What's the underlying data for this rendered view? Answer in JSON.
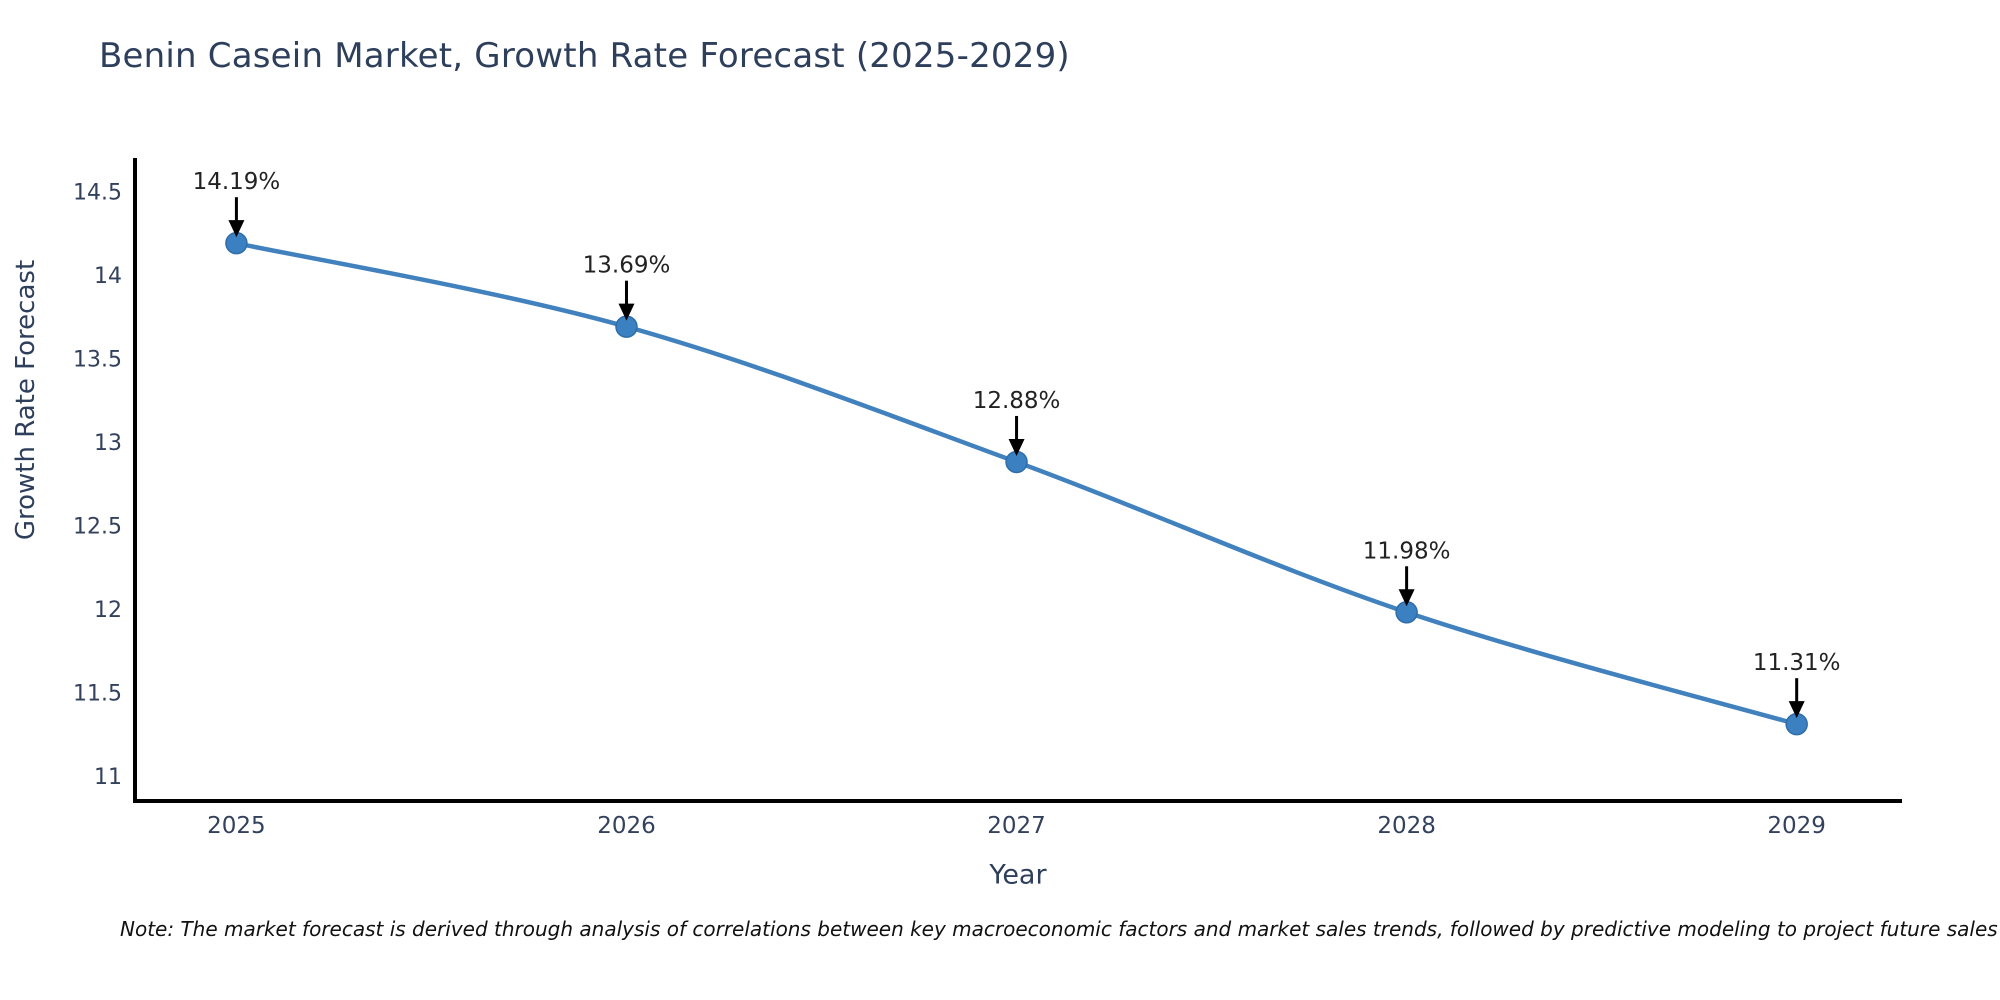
{
  "chart": {
    "title": "Benin Casein Market, Growth Rate Forecast (2025-2029)",
    "xlabel": "Year",
    "ylabel": "Growth Rate Forecast",
    "note": "Note: The market forecast is derived through analysis of correlations between key macroeconomic factors and market sales trends, followed by predictive modeling to project future sales"
  },
  "chart_data": {
    "type": "line",
    "title": "Benin Casein Market, Growth Rate Forecast (2025-2029)",
    "xlabel": "Year",
    "ylabel": "Growth Rate Forecast",
    "x": [
      2025,
      2026,
      2027,
      2028,
      2029
    ],
    "values": [
      14.19,
      13.69,
      12.88,
      11.98,
      11.31
    ],
    "point_labels": [
      "14.19%",
      "13.69%",
      "12.88%",
      "11.98%",
      "11.31%"
    ],
    "xticks": [
      "2025",
      "2026",
      "2027",
      "2028",
      "2029"
    ],
    "yticks": [
      11,
      11.5,
      12,
      12.5,
      13,
      13.5,
      14,
      14.5
    ],
    "xlim": [
      2024.74,
      2029.27
    ],
    "ylim": [
      10.85,
      14.7
    ],
    "grid": false,
    "legend": null,
    "smooth": true,
    "colors": {
      "line": "#4181bd",
      "marker_fill": "#3b80c0",
      "marker_edge": "#2e6da8",
      "spine": "#000000",
      "annotation_text": "#222222",
      "annotation_arrow": "#000000",
      "tick_label": "#33415c",
      "title_text": "#2e3f5c"
    }
  }
}
